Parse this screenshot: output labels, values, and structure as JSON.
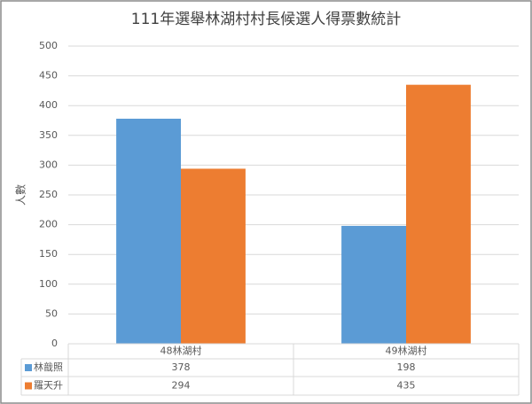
{
  "chart_data": {
    "type": "bar",
    "title": "111年選舉林湖村村長候選人得票數統計",
    "y_label": "人數",
    "categories": [
      "48林湖村",
      "49林湖村"
    ],
    "series": [
      {
        "name": "林戠照",
        "color": "#5b9bd5",
        "values": [
          378,
          198
        ]
      },
      {
        "name": "羅天升",
        "color": "#ed7d31",
        "values": [
          294,
          435
        ]
      }
    ],
    "ylim": [
      0,
      500
    ],
    "yticks": [
      0,
      50,
      100,
      150,
      200,
      250,
      300,
      350,
      400,
      450,
      500
    ],
    "grid": true,
    "data_table": true
  }
}
